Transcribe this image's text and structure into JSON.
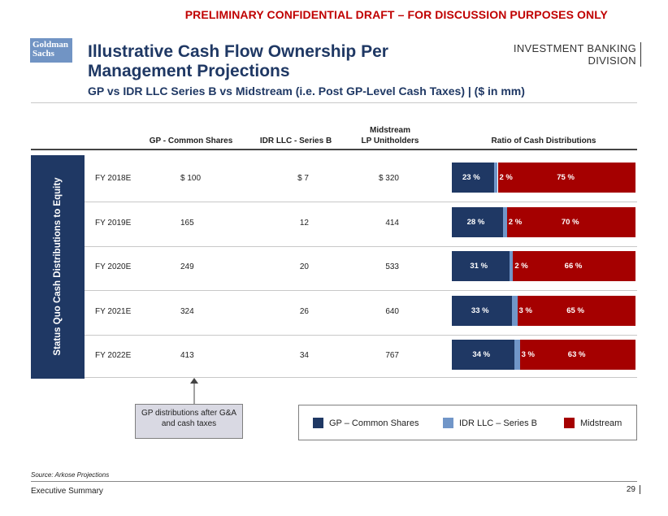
{
  "banner": "PRELIMINARY CONFIDENTIAL DRAFT – FOR DISCUSSION PURPOSES ONLY",
  "logo": {
    "line1": "Goldman",
    "line2": "Sachs"
  },
  "division": {
    "line1": "INVESTMENT BANKING",
    "line2": "DIVISION"
  },
  "title": {
    "line1": "Illustrative Cash Flow Ownership Per",
    "line2": "Management Projections"
  },
  "subtitle": "GP vs IDR LLC Series B vs Midstream (i.e. Post GP-Level Cash Taxes) | ($ in mm)",
  "columns": {
    "gp": "GP - Common Shares",
    "idr": "IDR LLC - Series B",
    "mid_line1": "Midstream",
    "mid_line2": "LP Unitholders",
    "ratio": "Ratio of Cash Distributions"
  },
  "sidebar_label": "Status Quo Cash Distributions to Equity",
  "rows": [
    {
      "year": "FY 2018E",
      "gp": "$ 100",
      "idr": "$ 7",
      "mid": "$ 320",
      "gp_pct": "23 %",
      "idr_pct": "2 %",
      "mid_pct": "75 %",
      "gp_val": 23,
      "idr_val": 2,
      "mid_val": 75
    },
    {
      "year": "FY 2019E",
      "gp": "165",
      "idr": "12",
      "mid": "414",
      "gp_pct": "28 %",
      "idr_pct": "2 %",
      "mid_pct": "70 %",
      "gp_val": 28,
      "idr_val": 2,
      "mid_val": 70
    },
    {
      "year": "FY 2020E",
      "gp": "249",
      "idr": "20",
      "mid": "533",
      "gp_pct": "31 %",
      "idr_pct": "2 %",
      "mid_pct": "66 %",
      "gp_val": 31,
      "idr_val": 2,
      "mid_val": 66
    },
    {
      "year": "FY 2021E",
      "gp": "324",
      "idr": "26",
      "mid": "640",
      "gp_pct": "33 %",
      "idr_pct": "3 %",
      "mid_pct": "65 %",
      "gp_val": 33,
      "idr_val": 3,
      "mid_val": 65
    },
    {
      "year": "FY 2022E",
      "gp": "413",
      "idr": "34",
      "mid": "767",
      "gp_pct": "34 %",
      "idr_pct": "3 %",
      "mid_pct": "63 %",
      "gp_val": 34,
      "idr_val": 3,
      "mid_val": 63
    }
  ],
  "callout": {
    "line1": "GP distributions after G&A",
    "line2": "and cash taxes"
  },
  "legend": {
    "gp": "GP – Common Shares",
    "idr": "IDR LLC – Series B",
    "mid": "Midstream"
  },
  "colors": {
    "gp": "#1f3864",
    "idr": "#7196c8",
    "mid": "#a50000",
    "navy": "#1f3864"
  },
  "source": "Source: Arkose Projections",
  "footer": "Executive Summary",
  "page_number": "29"
}
